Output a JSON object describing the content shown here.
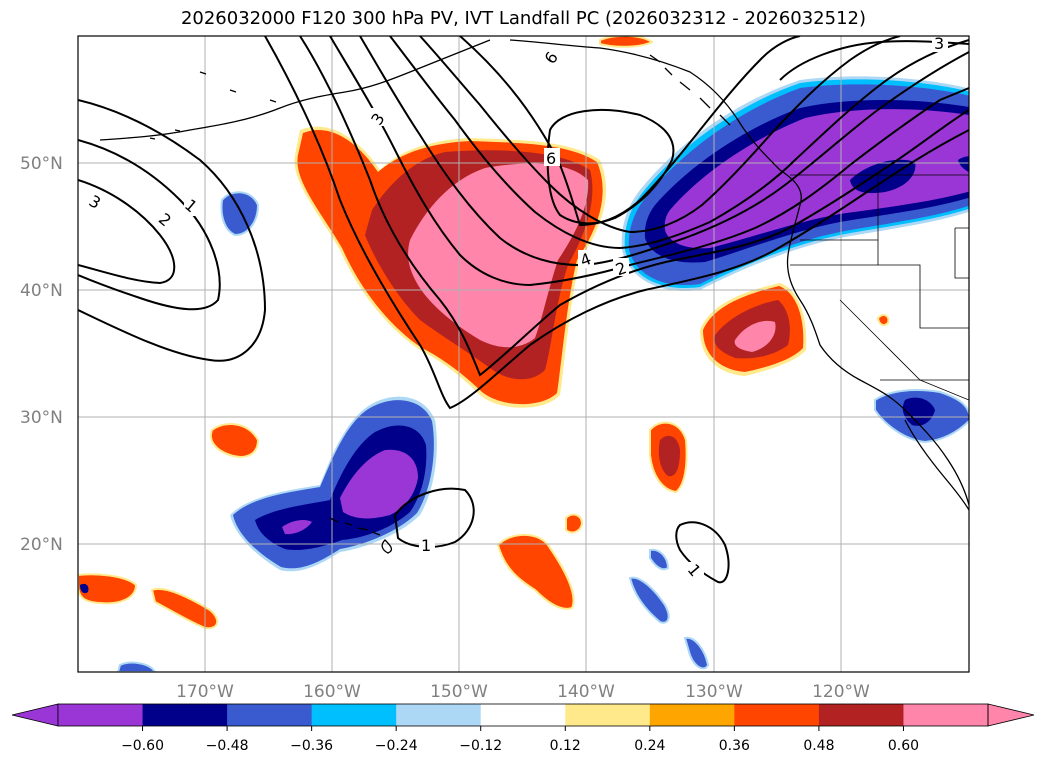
{
  "title": "2026032000 F120 300 hPa PV, IVT Landfall PC (2026032312 - 2026032512)",
  "map": {
    "lat_labels": [
      "50°N",
      "40°N",
      "30°N",
      "20°N"
    ],
    "lon_labels": [
      "170°W",
      "160°W",
      "150°W",
      "140°W",
      "130°W",
      "120°W"
    ],
    "contour_labels": [
      "3",
      "6",
      "6",
      "3",
      "1",
      "2",
      "4",
      "2",
      "1",
      "1",
      "3"
    ]
  },
  "colorbar": {
    "ticks": [
      "−0.60",
      "−0.48",
      "−0.36",
      "−0.24",
      "−0.12",
      "0.12",
      "0.24",
      "0.36",
      "0.48",
      "0.60"
    ],
    "colors": [
      "#9b36d6",
      "#00008b",
      "#3a5bd0",
      "#00bfff",
      "#add8f5",
      "#ffffff",
      "#ffe98a",
      "#ffa500",
      "#ff4500",
      "#b22222",
      "#ff85aa",
      "#ff85aa"
    ]
  }
}
